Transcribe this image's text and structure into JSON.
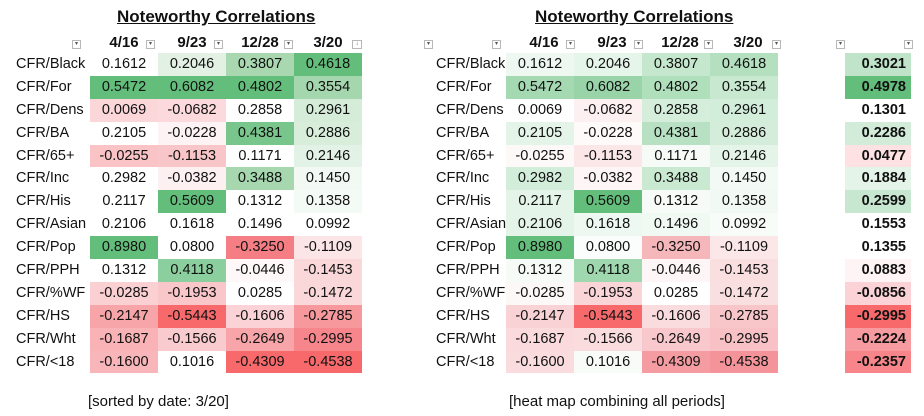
{
  "left_table": {
    "title": "Noteworthy Correlations",
    "columns": [
      "4/16",
      "9/23",
      "12/28",
      "3/20"
    ],
    "caption": "[sorted by date: 3/20]",
    "rows": [
      {
        "label": "CFR/Black",
        "values": [
          "0.1612",
          "0.2046",
          "0.3807",
          "0.4618"
        ],
        "colors": [
          "#ffffff",
          "#e3f1e4",
          "#a9d8b0",
          "#63be7b"
        ]
      },
      {
        "label": "CFR/For",
        "values": [
          "0.5472",
          "0.6082",
          "0.4802",
          "0.3554"
        ],
        "colors": [
          "#63be7b",
          "#63be7b",
          "#63be7b",
          "#a5d7ae"
        ]
      },
      {
        "label": "CFR/Dens",
        "values": [
          "0.0069",
          "-0.0682",
          "0.2858",
          "0.2961"
        ],
        "colors": [
          "#fbd7d9",
          "#fbd9dc",
          "#ffffff",
          "#d4ecd8"
        ]
      },
      {
        "label": "CFR/BA",
        "values": [
          "0.2105",
          "-0.0228",
          "0.4381",
          "0.2886"
        ],
        "colors": [
          "#ffffff",
          "#fdf3f4",
          "#78c68c",
          "#d8eedb"
        ]
      },
      {
        "label": "CFR/65+",
        "values": [
          "-0.0255",
          "-0.1153",
          "0.1171",
          "0.2146"
        ],
        "colors": [
          "#fac4c7",
          "#f8c6c9",
          "#ffffff",
          "#e3f2e6"
        ]
      },
      {
        "label": "CFR/Inc",
        "values": [
          "0.2982",
          "-0.0382",
          "0.3488",
          "0.1450"
        ],
        "colors": [
          "#ffffff",
          "#fdf0f1",
          "#a6d7af",
          "#f1f9f2"
        ]
      },
      {
        "label": "CFR/His",
        "values": [
          "0.2117",
          "0.5609",
          "0.1312",
          "0.1358"
        ],
        "colors": [
          "#ffffff",
          "#63be7b",
          "#ffffff",
          "#f4faf5"
        ]
      },
      {
        "label": "CFR/Asian",
        "values": [
          "0.2106",
          "0.1618",
          "0.1496",
          "0.0992"
        ],
        "colors": [
          "#ffffff",
          "#ffffff",
          "#ffffff",
          "#ffffff"
        ]
      },
      {
        "label": "CFR/Pop",
        "values": [
          "0.8980",
          "0.0800",
          "-0.3250",
          "-0.1109"
        ],
        "colors": [
          "#63be7b",
          "#ffffff",
          "#f57e84",
          "#fce5e7"
        ]
      },
      {
        "label": "CFR/PPH",
        "values": [
          "0.1312",
          "0.4118",
          "-0.0446",
          "-0.1453"
        ],
        "colors": [
          "#ffffff",
          "#8ccf9e",
          "#fff8f8",
          "#fad7d9"
        ]
      },
      {
        "label": "CFR/%WF",
        "values": [
          "-0.0285",
          "-0.1953",
          "0.0285",
          "-0.1472"
        ],
        "colors": [
          "#fbd0d3",
          "#f9c6c9",
          "#ffffff",
          "#fad7d9"
        ]
      },
      {
        "label": "CFR/HS",
        "values": [
          "-0.2147",
          "-0.5443",
          "-0.1606",
          "-0.2785"
        ],
        "colors": [
          "#f8a5aa",
          "#f8696b",
          "#fbd3d6",
          "#f7989d"
        ]
      },
      {
        "label": "CFR/Wht",
        "values": [
          "-0.1687",
          "-0.1566",
          "-0.2649",
          "-0.2995"
        ],
        "colors": [
          "#f9b2b6",
          "#facbce",
          "#f8a5aa",
          "#f7868c"
        ]
      },
      {
        "label": "CFR/<18",
        "values": [
          "-0.1600",
          "0.1016",
          "-0.4309",
          "-0.4538"
        ],
        "colors": [
          "#f9b6ba",
          "#ffffff",
          "#f8696b",
          "#f8696b"
        ]
      }
    ]
  },
  "right_table": {
    "title": "Noteworthy Correlations",
    "columns": [
      "4/16",
      "9/23",
      "12/28",
      "3/20"
    ],
    "caption": "[heat map combining all periods]",
    "rows": [
      {
        "label": "CFR/Black",
        "values": [
          "0.1612",
          "0.2046",
          "0.3807",
          "0.4618"
        ],
        "colors": [
          "#eef8f1",
          "#e6f5e9",
          "#c4e7cd",
          "#b4e0c0"
        ]
      },
      {
        "label": "CFR/For",
        "values": [
          "0.5472",
          "0.6082",
          "0.4802",
          "0.3554"
        ],
        "colors": [
          "#a4d9b2",
          "#98d4a8",
          "#b0dfbc",
          "#c8e8d0"
        ]
      },
      {
        "label": "CFR/Dens",
        "values": [
          "0.0069",
          "-0.0682",
          "0.2858",
          "0.2961"
        ],
        "colors": [
          "#ffffff",
          "#fcf0f1",
          "#d5eedb",
          "#d3eddb"
        ]
      },
      {
        "label": "CFR/BA",
        "values": [
          "0.2105",
          "-0.0228",
          "0.4381",
          "0.2886"
        ],
        "colors": [
          "#e5f4e8",
          "#fefafa",
          "#b8e1c3",
          "#d4edda"
        ]
      },
      {
        "label": "CFR/65+",
        "values": [
          "-0.0255",
          "-0.1153",
          "0.1171",
          "0.2146"
        ],
        "colors": [
          "#fdf9f9",
          "#fbe6e8",
          "#f6fbf7",
          "#e5f4e8"
        ]
      },
      {
        "label": "CFR/Inc",
        "values": [
          "0.2982",
          "-0.0382",
          "0.3488",
          "0.1450"
        ],
        "colors": [
          "#d3eddb",
          "#fdf5f6",
          "#cae9d1",
          "#f3faf5"
        ]
      },
      {
        "label": "CFR/His",
        "values": [
          "0.2117",
          "0.5609",
          "0.1312",
          "0.1358"
        ],
        "colors": [
          "#e4f4e8",
          "#63be7b",
          "#f6fbf7",
          "#f2f9f4"
        ]
      },
      {
        "label": "CFR/Asian",
        "values": [
          "0.2106",
          "0.1618",
          "0.1496",
          "0.0992"
        ],
        "colors": [
          "#e5f4e8",
          "#edf8f0",
          "#f1f9f3",
          "#f8fcf9"
        ]
      },
      {
        "label": "CFR/Pop",
        "values": [
          "0.8980",
          "0.0800",
          "-0.3250",
          "-0.1109"
        ],
        "colors": [
          "#63be7b",
          "#fafdfb",
          "#f6b7bb",
          "#fbe6e8"
        ]
      },
      {
        "label": "CFR/PPH",
        "values": [
          "0.1312",
          "0.4118",
          "-0.0446",
          "-0.1453"
        ],
        "colors": [
          "#f6fbf7",
          "#9fd7ae",
          "#fdf5f6",
          "#fadfe1"
        ]
      },
      {
        "label": "CFR/%WF",
        "values": [
          "-0.0285",
          "-0.1953",
          "0.0285",
          "-0.1472"
        ],
        "colors": [
          "#fdf8f8",
          "#f9d5d8",
          "#fefffe",
          "#fadfe1"
        ]
      },
      {
        "label": "CFR/HS",
        "values": [
          "-0.2147",
          "-0.5443",
          "-0.1606",
          "-0.2785"
        ],
        "colors": [
          "#f9d2d5",
          "#f8696b",
          "#fadcdf",
          "#f8c5c9"
        ]
      },
      {
        "label": "CFR/Wht",
        "values": [
          "-0.1687",
          "-0.1566",
          "-0.2649",
          "-0.2995"
        ],
        "colors": [
          "#fadadd",
          "#fadcdf",
          "#f8c8cc",
          "#f7c1c5"
        ]
      },
      {
        "label": "CFR/<18",
        "values": [
          "-0.1600",
          "0.1016",
          "-0.4309",
          "-0.4538"
        ],
        "colors": [
          "#fadbde",
          "#f8fcf9",
          "#f59ca2",
          "#f4949a"
        ]
      }
    ]
  },
  "combined_column": {
    "values": [
      "0.3021",
      "0.4978",
      "0.1301",
      "0.2286",
      "0.0477",
      "0.1884",
      "0.2599",
      "0.1553",
      "0.1355",
      "0.0883",
      "-0.0856",
      "-0.2995",
      "-0.2224",
      "-0.2357"
    ],
    "colors": [
      "#bfe4c9",
      "#63be7b",
      "#ffffff",
      "#d2ecd9",
      "#fde1e3",
      "#e4f4e8",
      "#c8e7d0",
      "#ffffff",
      "#ffffff",
      "#fff4f5",
      "#fbd3d6",
      "#f8696b",
      "#f89ba0",
      "#f8858a"
    ]
  }
}
